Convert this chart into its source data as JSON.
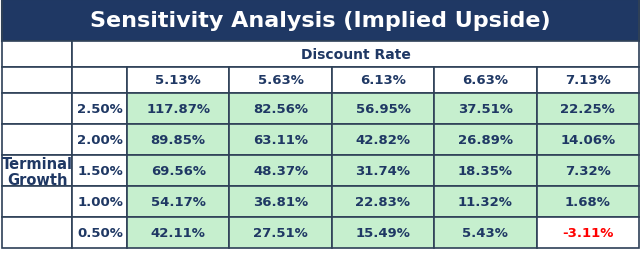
{
  "title": "Sensitivity Analysis (Implied Upside)",
  "title_bg": "#1F3864",
  "title_color": "#FFFFFF",
  "header_label": "Discount Rate",
  "row_label_top": "Terminal",
  "row_label_bot": "Growth",
  "col_headers": [
    "5.13%",
    "5.63%",
    "6.13%",
    "6.63%",
    "7.13%"
  ],
  "row_headers": [
    "2.50%",
    "2.00%",
    "1.50%",
    "1.00%",
    "0.50%"
  ],
  "data": [
    [
      "117.87%",
      "82.56%",
      "56.95%",
      "37.51%",
      "22.25%"
    ],
    [
      "89.85%",
      "63.11%",
      "42.82%",
      "26.89%",
      "14.06%"
    ],
    [
      "69.56%",
      "48.37%",
      "31.74%",
      "18.35%",
      "7.32%"
    ],
    [
      "54.17%",
      "36.81%",
      "22.83%",
      "11.32%",
      "1.68%"
    ],
    [
      "42.11%",
      "27.51%",
      "15.49%",
      "5.43%",
      "-3.11%"
    ]
  ],
  "cell_bg_green": "#C6EFCE",
  "cell_bg_white": "#FFFFFF",
  "border_color": "#2E4057",
  "text_color_dark": "#1F3864",
  "text_color_red": "#FF0000",
  "title_fontsize": 16,
  "header_fontsize": 10,
  "data_fontsize": 9.5,
  "label_fontsize": 10.5
}
